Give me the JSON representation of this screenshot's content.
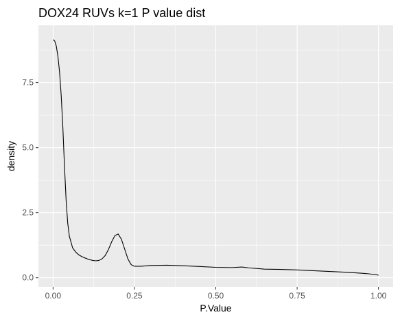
{
  "chart_data": {
    "type": "line",
    "title": "DOX24 RUVs k=1 P value dist",
    "xlabel": "P.Value",
    "ylabel": "density",
    "xlim": [
      -0.045,
      1.045
    ],
    "ylim": [
      -0.35,
      9.7
    ],
    "x_ticks": [
      0.0,
      0.25,
      0.5,
      0.75,
      1.0
    ],
    "x_tick_labels": [
      "0.00",
      "0.25",
      "0.50",
      "0.75",
      "1.00"
    ],
    "y_ticks": [
      0.0,
      2.5,
      5.0,
      7.5
    ],
    "y_tick_labels": [
      "0.0",
      "2.5",
      "5.0",
      "7.5"
    ],
    "grid": true,
    "legend": "none",
    "colors": {
      "panel": "#ebebeb",
      "grid": "#ffffff",
      "line": "#000000",
      "tick_text": "#4d4d4d"
    },
    "series": [
      {
        "x": [
          0.0,
          0.005,
          0.01,
          0.015,
          0.02,
          0.025,
          0.03,
          0.035,
          0.04,
          0.045,
          0.05,
          0.06,
          0.07,
          0.08,
          0.09,
          0.1,
          0.11,
          0.12,
          0.13,
          0.14,
          0.15,
          0.16,
          0.17,
          0.18,
          0.19,
          0.2,
          0.21,
          0.22,
          0.23,
          0.24,
          0.25,
          0.27,
          0.3,
          0.35,
          0.4,
          0.45,
          0.5,
          0.55,
          0.58,
          0.6,
          0.65,
          0.7,
          0.75,
          0.8,
          0.85,
          0.9,
          0.95,
          0.97,
          0.99,
          1.0
        ],
        "y": [
          9.15,
          9.1,
          8.9,
          8.5,
          7.9,
          7.0,
          5.8,
          4.3,
          3.0,
          2.1,
          1.6,
          1.15,
          0.98,
          0.87,
          0.8,
          0.75,
          0.7,
          0.67,
          0.65,
          0.66,
          0.72,
          0.85,
          1.08,
          1.38,
          1.62,
          1.68,
          1.48,
          1.1,
          0.72,
          0.5,
          0.44,
          0.44,
          0.47,
          0.48,
          0.46,
          0.43,
          0.4,
          0.39,
          0.41,
          0.38,
          0.33,
          0.32,
          0.3,
          0.27,
          0.24,
          0.21,
          0.17,
          0.15,
          0.12,
          0.1
        ]
      }
    ]
  }
}
